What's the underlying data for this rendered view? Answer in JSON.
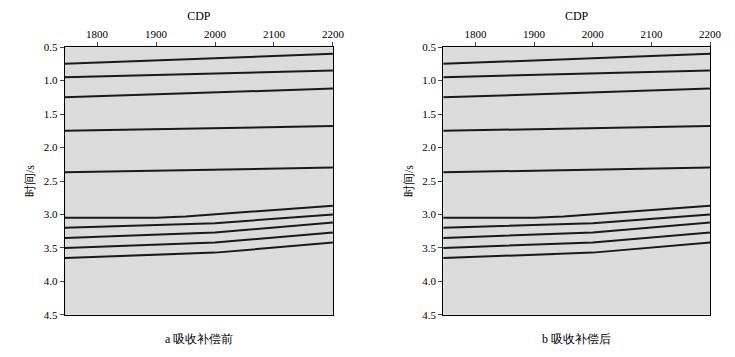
{
  "chart_data": [
    {
      "type": "line",
      "title": "a 吸收补偿前",
      "xlabel": "CDP",
      "ylabel": "时间/s",
      "xlim": [
        1745,
        2200
      ],
      "xticks": [
        1800,
        1900,
        2000,
        2100,
        2200
      ],
      "ylim": [
        4.5,
        0.5
      ],
      "yticks": [
        0.5,
        {
          "value": 1,
          "label": "1.0"
        },
        1.5,
        {
          "value": 2,
          "label": "2.0"
        },
        2.5,
        {
          "value": 3,
          "label": "3.0"
        },
        3.5,
        {
          "value": 4,
          "label": "4.0"
        },
        4.5
      ],
      "color": "#1a1a1a",
      "series": [
        {
          "x": [
            1745,
            2200
          ],
          "values": [
            0.75,
            0.6
          ]
        },
        {
          "x": [
            1745,
            2200
          ],
          "values": [
            0.95,
            0.85
          ]
        },
        {
          "x": [
            1745,
            2200
          ],
          "values": [
            1.25,
            1.12
          ]
        },
        {
          "x": [
            1745,
            2200
          ],
          "values": [
            1.75,
            1.68
          ]
        },
        {
          "x": [
            1745,
            2200
          ],
          "values": [
            2.37,
            2.3
          ]
        },
        {
          "x": [
            1745,
            1900,
            1950,
            2000,
            2200
          ],
          "values": [
            3.05,
            3.05,
            3.03,
            3.0,
            2.87
          ]
        },
        {
          "x": [
            1745,
            2000,
            2200
          ],
          "values": [
            3.2,
            3.13,
            3.0
          ]
        },
        {
          "x": [
            1745,
            2000,
            2200
          ],
          "values": [
            3.35,
            3.27,
            3.12
          ]
        },
        {
          "x": [
            1745,
            2000,
            2200
          ],
          "values": [
            3.5,
            3.42,
            3.27
          ]
        },
        {
          "x": [
            1745,
            2000,
            2200
          ],
          "values": [
            3.65,
            3.57,
            3.42
          ]
        }
      ]
    },
    {
      "type": "line",
      "title": "b 吸收补偿后",
      "xlabel": "CDP",
      "ylabel": "时间/s",
      "xlim": [
        1745,
        2200
      ],
      "xticks": [
        1800,
        1900,
        2000,
        2100,
        2200
      ],
      "ylim": [
        4.5,
        0.5
      ],
      "yticks": [
        0.5,
        {
          "value": 1,
          "label": "1.0"
        },
        1.5,
        {
          "value": 2,
          "label": "2.0"
        },
        2.5,
        {
          "value": 3,
          "label": "3.0"
        },
        3.5,
        {
          "value": 4,
          "label": "4.0"
        },
        4.5
      ],
      "color": "#1a1a1a",
      "series": [
        {
          "x": [
            1745,
            2200
          ],
          "values": [
            0.75,
            0.6
          ]
        },
        {
          "x": [
            1745,
            2200
          ],
          "values": [
            0.95,
            0.85
          ]
        },
        {
          "x": [
            1745,
            2200
          ],
          "values": [
            1.25,
            1.12
          ]
        },
        {
          "x": [
            1745,
            2200
          ],
          "values": [
            1.75,
            1.68
          ]
        },
        {
          "x": [
            1745,
            2200
          ],
          "values": [
            2.37,
            2.3
          ]
        },
        {
          "x": [
            1745,
            1900,
            1950,
            2000,
            2200
          ],
          "values": [
            3.05,
            3.05,
            3.03,
            3.0,
            2.87
          ]
        },
        {
          "x": [
            1745,
            2000,
            2200
          ],
          "values": [
            3.2,
            3.13,
            3.0
          ]
        },
        {
          "x": [
            1745,
            2000,
            2200
          ],
          "values": [
            3.35,
            3.27,
            3.12
          ]
        },
        {
          "x": [
            1745,
            2000,
            2200
          ],
          "values": [
            3.5,
            3.42,
            3.27
          ]
        },
        {
          "x": [
            1745,
            2000,
            2200
          ],
          "values": [
            3.65,
            3.57,
            3.42
          ]
        }
      ]
    }
  ]
}
